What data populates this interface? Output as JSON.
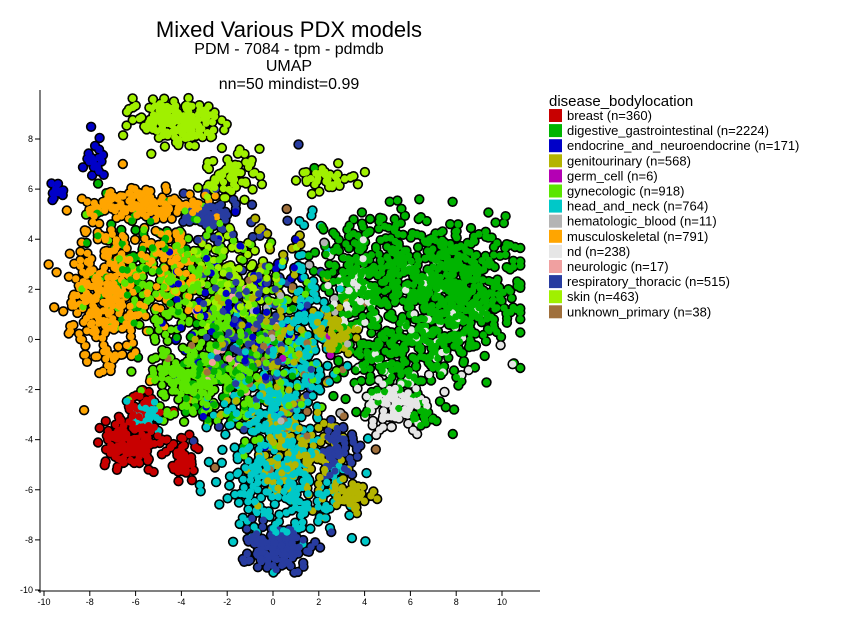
{
  "chart_data": {
    "type": "scatter",
    "title": "Mixed Various PDX models",
    "subtitle_lines": [
      "PDM - 7084 - tpm - pdmdb",
      "UMAP",
      "nn=50 mindist=0.99"
    ],
    "xlabel": "",
    "ylabel": "",
    "xlim": [
      -10.5,
      11.5
    ],
    "ylim": [
      -10,
      10
    ],
    "x_ticks": [
      -10,
      -8,
      -6,
      -4,
      -2,
      0,
      2,
      4,
      6,
      8,
      10
    ],
    "y_ticks": [
      -10,
      -8,
      -6,
      -4,
      -2,
      0,
      2,
      4,
      6,
      8
    ],
    "grid": false,
    "legend_placement": "right",
    "legend_title": "disease_bodylocation",
    "series": [
      {
        "name": "breast (n=360)",
        "color": "#c80000",
        "clusters": [
          {
            "cx": -6.2,
            "cy": -4.1,
            "sx": 0.75,
            "sy": 0.7,
            "n": 160
          },
          {
            "cx": -4.0,
            "cy": -4.8,
            "sx": 0.35,
            "sy": 0.5,
            "n": 45
          },
          {
            "cx": -5.6,
            "cy": -2.6,
            "sx": 0.5,
            "sy": 0.4,
            "n": 30
          }
        ]
      },
      {
        "name": "digestive_gastrointestinal (n=2224)",
        "color": "#00b400",
        "clusters": [
          {
            "cx": 7.8,
            "cy": 1.8,
            "sx": 1.7,
            "sy": 1.6,
            "n": 520
          },
          {
            "cx": 4.5,
            "cy": 2.6,
            "sx": 1.6,
            "sy": 1.4,
            "n": 300
          },
          {
            "cx": 5.0,
            "cy": -0.8,
            "sx": 1.3,
            "sy": 1.0,
            "n": 140
          },
          {
            "cx": -6.0,
            "cy": 3.2,
            "sx": 1.3,
            "sy": 1.5,
            "n": 60
          },
          {
            "cx": -2.0,
            "cy": -1.2,
            "sx": 1.3,
            "sy": 1.2,
            "n": 80
          },
          {
            "cx": 6.5,
            "cy": -3.0,
            "sx": 0.5,
            "sy": 0.4,
            "n": 25
          }
        ]
      },
      {
        "name": "endocrine_and_neuroendocrine (n=171)",
        "color": "#0000c8",
        "clusters": [
          {
            "cx": -7.8,
            "cy": 7.2,
            "sx": 0.3,
            "sy": 0.4,
            "n": 20
          },
          {
            "cx": -9.4,
            "cy": 5.9,
            "sx": 0.25,
            "sy": 0.25,
            "n": 14
          },
          {
            "cx": -1.5,
            "cy": 1.0,
            "sx": 2.2,
            "sy": 2.0,
            "n": 90
          }
        ]
      },
      {
        "name": "genitourinary (n=568)",
        "color": "#b4b400",
        "clusters": [
          {
            "cx": 2.8,
            "cy": 0.3,
            "sx": 0.45,
            "sy": 0.5,
            "n": 60
          },
          {
            "cx": 3.4,
            "cy": -6.3,
            "sx": 0.6,
            "sy": 0.35,
            "n": 50
          },
          {
            "cx": 1.0,
            "cy": -4.5,
            "sx": 1.2,
            "sy": 1.2,
            "n": 120
          },
          {
            "cx": -0.5,
            "cy": 0.0,
            "sx": 1.6,
            "sy": 2.5,
            "n": 100
          }
        ]
      },
      {
        "name": "germ_cell (n=6)",
        "color": "#b400b4",
        "clusters": [
          {
            "cx": 0.5,
            "cy": -1.5,
            "sx": 1.5,
            "sy": 1.5,
            "n": 6
          }
        ]
      },
      {
        "name": "gynecologic (n=918)",
        "color": "#5ae600",
        "clusters": [
          {
            "cx": -4.0,
            "cy": 1.8,
            "sx": 1.8,
            "sy": 1.5,
            "n": 220
          },
          {
            "cx": -3.5,
            "cy": -1.8,
            "sx": 1.3,
            "sy": 0.8,
            "n": 150
          },
          {
            "cx": -0.8,
            "cy": -0.3,
            "sx": 1.5,
            "sy": 2.0,
            "n": 180
          }
        ]
      },
      {
        "name": "head_and_neck (n=764)",
        "color": "#00c8c8",
        "clusters": [
          {
            "cx": 0.8,
            "cy": -6.0,
            "sx": 1.6,
            "sy": 1.2,
            "n": 200
          },
          {
            "cx": -0.2,
            "cy": -3.0,
            "sx": 1.2,
            "sy": 1.5,
            "n": 200
          },
          {
            "cx": 1.5,
            "cy": 0.5,
            "sx": 0.8,
            "sy": 2.0,
            "n": 130
          },
          {
            "cx": -5.5,
            "cy": -3.0,
            "sx": 0.5,
            "sy": 0.4,
            "n": 30
          }
        ]
      },
      {
        "name": "hematologic_blood (n=11)",
        "color": "#b4b4b4",
        "clusters": [
          {
            "cx": 0.5,
            "cy": 0.0,
            "sx": 2.0,
            "sy": 2.5,
            "n": 11
          }
        ]
      },
      {
        "name": "musculoskeletal (n=791)",
        "color": "#ffa500",
        "clusters": [
          {
            "cx": -7.3,
            "cy": 1.8,
            "sx": 1.0,
            "sy": 1.6,
            "n": 300
          },
          {
            "cx": -5.5,
            "cy": 5.4,
            "sx": 1.5,
            "sy": 0.35,
            "n": 150
          },
          {
            "cx": -4.5,
            "cy": 3.0,
            "sx": 0.8,
            "sy": 1.0,
            "n": 90
          }
        ]
      },
      {
        "name": "nd (n=238)",
        "color": "#e6e6e6",
        "clusters": [
          {
            "cx": 5.3,
            "cy": -2.6,
            "sx": 0.8,
            "sy": 0.6,
            "n": 90
          },
          {
            "cx": 3.6,
            "cy": 2.0,
            "sx": 0.6,
            "sy": 1.0,
            "n": 40
          },
          {
            "cx": 7.0,
            "cy": 0.5,
            "sx": 1.5,
            "sy": 1.5,
            "n": 40
          }
        ]
      },
      {
        "name": "neurologic (n=17)",
        "color": "#f0a0a0",
        "clusters": [
          {
            "cx": -2.0,
            "cy": 0.0,
            "sx": 1.5,
            "sy": 1.5,
            "n": 17
          }
        ]
      },
      {
        "name": "respiratory_thoracic (n=515)",
        "color": "#283ca0",
        "clusters": [
          {
            "cx": 0.3,
            "cy": -8.3,
            "sx": 0.8,
            "sy": 0.6,
            "n": 140
          },
          {
            "cx": 2.8,
            "cy": -4.5,
            "sx": 0.4,
            "sy": 0.5,
            "n": 60
          },
          {
            "cx": -2.8,
            "cy": 5.0,
            "sx": 0.8,
            "sy": 0.5,
            "n": 60
          },
          {
            "cx": -1.0,
            "cy": 0.5,
            "sx": 1.3,
            "sy": 2.0,
            "n": 120
          }
        ]
      },
      {
        "name": "skin (n=463)",
        "color": "#a0f000",
        "clusters": [
          {
            "cx": -4.2,
            "cy": 8.7,
            "sx": 1.0,
            "sy": 0.55,
            "n": 190
          },
          {
            "cx": -1.8,
            "cy": 6.5,
            "sx": 0.7,
            "sy": 0.6,
            "n": 60
          },
          {
            "cx": 2.2,
            "cy": 6.5,
            "sx": 0.8,
            "sy": 0.35,
            "n": 35
          },
          {
            "cx": -1.5,
            "cy": 2.5,
            "sx": 1.2,
            "sy": 1.0,
            "n": 80
          }
        ]
      },
      {
        "name": "unknown_primary (n=38)",
        "color": "#a0703c",
        "clusters": [
          {
            "cx": 0.0,
            "cy": -1.0,
            "sx": 2.5,
            "sy": 2.5,
            "n": 38
          }
        ]
      }
    ]
  }
}
